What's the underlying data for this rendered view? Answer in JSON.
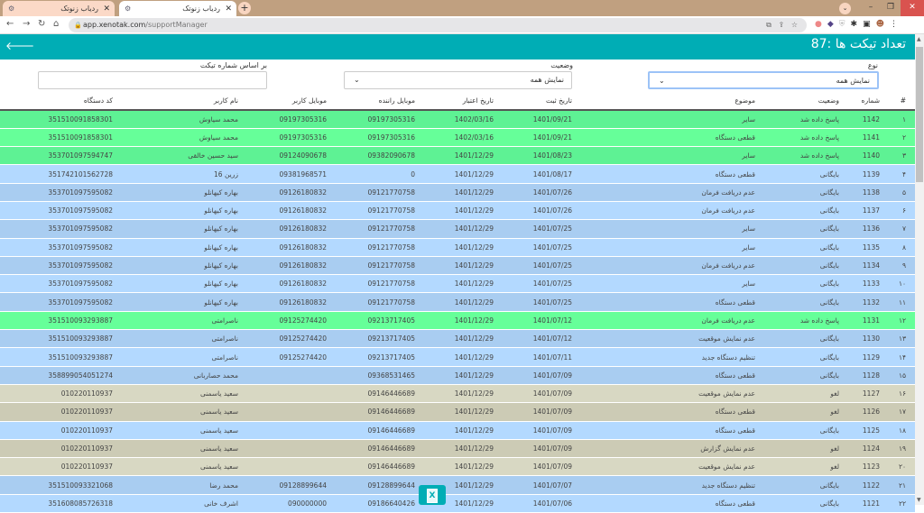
{
  "browser": {
    "tabs": [
      {
        "label": "ردیاب زنوتک",
        "active": false
      },
      {
        "label": "ردیاب زنوتک",
        "active": true
      }
    ],
    "url_host": "app.xenotak.com",
    "url_path": "/supportManager"
  },
  "header": {
    "title": "تعداد تیکت ها :87"
  },
  "filters": {
    "type_label": "نوع",
    "type_value": "نمایش همه",
    "status_label": "وضعیت",
    "status_value": "نمایش همه",
    "ticket_label": "بر اساس شماره تیکت",
    "ticket_value": ""
  },
  "status_colors": {
    "پاسخ داده شد": [
      "#5ef294",
      "#66ff99"
    ],
    "بایگانی": [
      "#a9cdf1",
      "#b3d9ff"
    ],
    "لغو": [
      "#cccbb5",
      "#d8d8c3"
    ]
  },
  "accent": "#00adb5",
  "table": {
    "columns": [
      "#",
      "شماره",
      "وضعیت",
      "موضوع",
      "تاریخ ثبت",
      "تاریخ اعتبار",
      "موبایل راننده",
      "موبایل کاربر",
      "نام کاربر",
      "کد دستگاه"
    ],
    "rows": [
      [
        "۱",
        "1142",
        "پاسخ داده شد",
        "سایر",
        "1401/09/21",
        "1402/03/16",
        "09197305316",
        "09197305316",
        "محمد سیاوش",
        "351510091858301"
      ],
      [
        "۲",
        "1141",
        "پاسخ داده شد",
        "قطعی دستگاه",
        "1401/09/21",
        "1402/03/16",
        "09197305316",
        "09197305316",
        "محمد سیاوش",
        "351510091858301"
      ],
      [
        "۳",
        "1140",
        "پاسخ داده شد",
        "سایر",
        "1401/08/23",
        "1401/12/29",
        "09382090678",
        "09124090678",
        "سید حسین خالقی",
        "353701097594747"
      ],
      [
        "۴",
        "1139",
        "بایگانی",
        "قطعی دستگاه",
        "1401/08/17",
        "1401/12/29",
        "0",
        "09381968571",
        "زرین 16",
        "351742101562728"
      ],
      [
        "۵",
        "1138",
        "بایگانی",
        "عدم دریافت فرمان",
        "1401/07/26",
        "1401/12/29",
        "09121770758",
        "09126180832",
        "بهاره کیهانلو",
        "353701097595082"
      ],
      [
        "۶",
        "1137",
        "بایگانی",
        "عدم دریافت فرمان",
        "1401/07/26",
        "1401/12/29",
        "09121770758",
        "09126180832",
        "بهاره کیهانلو",
        "353701097595082"
      ],
      [
        "۷",
        "1136",
        "بایگانی",
        "سایر",
        "1401/07/25",
        "1401/12/29",
        "09121770758",
        "09126180832",
        "بهاره کیهانلو",
        "353701097595082"
      ],
      [
        "۸",
        "1135",
        "بایگانی",
        "سایر",
        "1401/07/25",
        "1401/12/29",
        "09121770758",
        "09126180832",
        "بهاره کیهانلو",
        "353701097595082"
      ],
      [
        "۹",
        "1134",
        "بایگانی",
        "عدم دریافت فرمان",
        "1401/07/25",
        "1401/12/29",
        "09121770758",
        "09126180832",
        "بهاره کیهانلو",
        "353701097595082"
      ],
      [
        "۱۰",
        "1133",
        "بایگانی",
        "سایر",
        "1401/07/25",
        "1401/12/29",
        "09121770758",
        "09126180832",
        "بهاره کیهانلو",
        "353701097595082"
      ],
      [
        "۱۱",
        "1132",
        "بایگانی",
        "قطعی دستگاه",
        "1401/07/25",
        "1401/12/29",
        "09121770758",
        "09126180832",
        "بهاره کیهانلو",
        "353701097595082"
      ],
      [
        "۱۲",
        "1131",
        "پاسخ داده شد",
        "عدم دریافت فرمان",
        "1401/07/12",
        "1401/12/29",
        "09213717405",
        "09125274420",
        "ناصرامتی",
        "351510093293887"
      ],
      [
        "۱۳",
        "1130",
        "بایگانی",
        "عدم نمایش موقعیت",
        "1401/07/12",
        "1401/12/29",
        "09213717405",
        "09125274420",
        "ناصرامتی",
        "351510093293887"
      ],
      [
        "۱۴",
        "1129",
        "بایگانی",
        "تنظیم دستگاه جدید",
        "1401/07/11",
        "1401/12/29",
        "09213717405",
        "09125274420",
        "ناصرامتی",
        "351510093293887"
      ],
      [
        "۱۵",
        "1128",
        "بایگانی",
        "قطعی دستگاه",
        "1401/07/09",
        "1401/12/29",
        "09368531465",
        "",
        "محمد حصاربانی",
        "358899054051274"
      ],
      [
        "۱۶",
        "1127",
        "لغو",
        "عدم نمایش موقعیت",
        "1401/07/09",
        "1401/12/29",
        "09146446689",
        "",
        "سعید یاسمنی",
        "010220110937"
      ],
      [
        "۱۷",
        "1126",
        "لغو",
        "قطعی دستگاه",
        "1401/07/09",
        "1401/12/29",
        "09146446689",
        "",
        "سعید یاسمنی",
        "010220110937"
      ],
      [
        "۱۸",
        "1125",
        "بایگانی",
        "قطعی دستگاه",
        "1401/07/09",
        "1401/12/29",
        "09146446689",
        "",
        "سعید یاسمنی",
        "010220110937"
      ],
      [
        "۱۹",
        "1124",
        "لغو",
        "عدم نمایش گزارش",
        "1401/07/09",
        "1401/12/29",
        "09146446689",
        "",
        "سعید یاسمنی",
        "010220110937"
      ],
      [
        "۲۰",
        "1123",
        "لغو",
        "عدم نمایش موقعیت",
        "1401/07/09",
        "1401/12/29",
        "09146446689",
        "",
        "سعید یاسمنی",
        "010220110937"
      ],
      [
        "۲۱",
        "1122",
        "بایگانی",
        "تنظیم دستگاه جدید",
        "1401/07/07",
        "1401/12/29",
        "09128899644",
        "09128899644",
        "محمد رضا",
        "351510093321068"
      ],
      [
        "۲۲",
        "1121",
        "بایگانی",
        "قطعی دستگاه",
        "1401/07/06",
        "1401/12/29",
        "09186640426",
        "090000000",
        "اشرف خانی",
        "351608085726318"
      ]
    ]
  },
  "excel_button": {
    "label": "X",
    "icon": "excel-icon"
  }
}
